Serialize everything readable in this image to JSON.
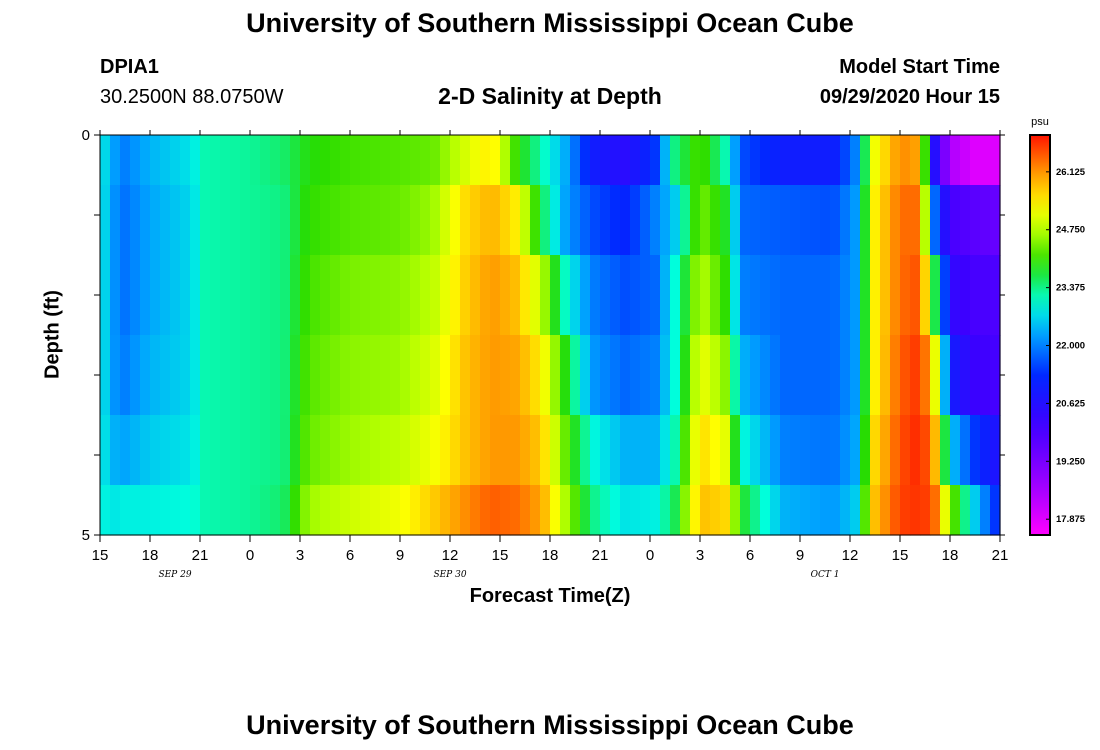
{
  "page": {
    "title": "University of Southern Mississippi Ocean Cube",
    "footer_title": "University of Southern Mississippi Ocean Cube",
    "station_id": "DPIA1",
    "station_coords": "30.2500N 88.0750W",
    "chart_title": "2-D Salinity at Depth",
    "start_label": "Model Start Time",
    "start_value": "09/29/2020 Hour 15"
  },
  "chart_data": {
    "type": "heatmap",
    "title": "2-D Salinity at Depth",
    "xlabel": "Forecast Time(Z)",
    "ylabel": "Depth (ft)",
    "x_hours": [
      0,
      54
    ],
    "x_ticks": [
      {
        "h": 0,
        "label": "15"
      },
      {
        "h": 3,
        "label": "18"
      },
      {
        "h": 6,
        "label": "21"
      },
      {
        "h": 9,
        "label": "0"
      },
      {
        "h": 12,
        "label": "3"
      },
      {
        "h": 15,
        "label": "6"
      },
      {
        "h": 18,
        "label": "9"
      },
      {
        "h": 21,
        "label": "12"
      },
      {
        "h": 24,
        "label": "15"
      },
      {
        "h": 27,
        "label": "18"
      },
      {
        "h": 30,
        "label": "21"
      },
      {
        "h": 33,
        "label": "0"
      },
      {
        "h": 36,
        "label": "3"
      },
      {
        "h": 39,
        "label": "6"
      },
      {
        "h": 42,
        "label": "9"
      },
      {
        "h": 45,
        "label": "12"
      },
      {
        "h": 48,
        "label": "15"
      },
      {
        "h": 51,
        "label": "18"
      },
      {
        "h": 54,
        "label": "21"
      }
    ],
    "date_labels": [
      {
        "h": 4.5,
        "label": "SEP 29"
      },
      {
        "h": 21,
        "label": "SEP 30"
      },
      {
        "h": 43.5,
        "label": "OCT 1"
      }
    ],
    "ylim": [
      0,
      5
    ],
    "y_tick_labels": [
      {
        "depth": 0,
        "label": "0"
      },
      {
        "depth": 5,
        "label": "5"
      }
    ],
    "colorbar": {
      "unit": "psu",
      "min": 17.5,
      "max": 27.0,
      "ticks": [
        "26.125",
        "24.750",
        "23.375",
        "22.000",
        "20.625",
        "19.250",
        "17.875"
      ]
    },
    "layers_depth_ft": [
      0.25,
      1.0,
      2.0,
      3.0,
      4.0,
      4.75
    ],
    "time_profiles": [
      {
        "h": 0,
        "s": [
          23.0,
          23.0,
          23.0,
          23.0,
          23.0,
          23.0
        ]
      },
      {
        "h": 0.7,
        "s": [
          22.3,
          22.2,
          22.2,
          22.2,
          22.4,
          22.8
        ]
      },
      {
        "h": 1.5,
        "s": [
          22.0,
          21.9,
          21.9,
          22.0,
          22.3,
          22.9
        ]
      },
      {
        "h": 3,
        "s": [
          22.4,
          22.3,
          22.3,
          22.4,
          22.6,
          22.9
        ]
      },
      {
        "h": 5.5,
        "s": [
          22.8,
          22.7,
          22.7,
          22.7,
          22.8,
          23.0
        ]
      },
      {
        "h": 6.3,
        "s": [
          23.2,
          23.2,
          23.2,
          23.2,
          23.2,
          23.2
        ]
      },
      {
        "h": 9,
        "s": [
          23.3,
          23.3,
          23.3,
          23.3,
          23.3,
          23.3
        ]
      },
      {
        "h": 11,
        "s": [
          23.5,
          23.4,
          23.4,
          23.4,
          23.4,
          23.5
        ]
      },
      {
        "h": 12.5,
        "s": [
          23.9,
          24.0,
          24.1,
          24.2,
          24.3,
          24.6
        ]
      },
      {
        "h": 15,
        "s": [
          24.1,
          24.2,
          24.4,
          24.5,
          24.6,
          24.9
        ]
      },
      {
        "h": 18,
        "s": [
          24.2,
          24.3,
          24.5,
          24.6,
          24.8,
          25.2
        ]
      },
      {
        "h": 20,
        "s": [
          24.3,
          24.6,
          24.8,
          25.0,
          25.2,
          25.7
        ]
      },
      {
        "h": 22,
        "s": [
          25.0,
          25.6,
          25.7,
          25.8,
          25.8,
          26.2
        ]
      },
      {
        "h": 23.5,
        "s": [
          25.5,
          25.9,
          26.1,
          26.1,
          26.1,
          26.5
        ]
      },
      {
        "h": 25,
        "s": [
          24.0,
          25.4,
          25.8,
          26.0,
          26.1,
          26.4
        ]
      },
      {
        "h": 26.5,
        "s": [
          23.2,
          23.6,
          24.8,
          25.4,
          25.7,
          26.0
        ]
      },
      {
        "h": 28,
        "s": [
          22.3,
          22.2,
          23.0,
          23.8,
          24.2,
          24.6
        ]
      },
      {
        "h": 29.5,
        "s": [
          21.0,
          21.6,
          22.0,
          22.2,
          23.0,
          23.4
        ]
      },
      {
        "h": 31.5,
        "s": [
          20.5,
          21.2,
          21.6,
          21.8,
          22.4,
          22.8
        ]
      },
      {
        "h": 33.3,
        "s": [
          21.4,
          22.0,
          21.8,
          22.0,
          22.4,
          22.9
        ]
      },
      {
        "h": 34.5,
        "s": [
          23.4,
          22.6,
          23.0,
          23.0,
          23.2,
          23.6
        ]
      },
      {
        "h": 36,
        "s": [
          24.2,
          24.4,
          24.8,
          25.2,
          25.6,
          25.8
        ]
      },
      {
        "h": 37.5,
        "s": [
          23.2,
          23.8,
          24.0,
          24.5,
          25.1,
          25.6
        ]
      },
      {
        "h": 38.5,
        "s": [
          21.6,
          21.8,
          22.0,
          22.4,
          23.0,
          23.8
        ]
      },
      {
        "h": 41,
        "s": [
          21.0,
          21.7,
          21.8,
          21.8,
          22.0,
          22.4
        ]
      },
      {
        "h": 44,
        "s": [
          21.0,
          21.6,
          21.8,
          21.8,
          21.9,
          22.2
        ]
      },
      {
        "h": 45.3,
        "s": [
          22.0,
          22.2,
          22.2,
          22.2,
          22.3,
          22.6
        ]
      },
      {
        "h": 46.5,
        "s": [
          25.2,
          25.4,
          25.4,
          25.4,
          25.6,
          25.8
        ]
      },
      {
        "h": 48,
        "s": [
          26.2,
          26.4,
          26.4,
          26.5,
          26.6,
          26.7
        ]
      },
      {
        "h": 49.2,
        "s": [
          26.0,
          26.4,
          26.6,
          26.8,
          26.9,
          26.8
        ]
      },
      {
        "h": 50,
        "s": [
          20.8,
          22.0,
          24.0,
          25.6,
          26.2,
          26.6
        ]
      },
      {
        "h": 51,
        "s": [
          18.5,
          20.0,
          20.4,
          21.0,
          22.6,
          24.5
        ]
      },
      {
        "h": 52.5,
        "s": [
          17.9,
          19.7,
          20.0,
          20.2,
          21.4,
          22.6
        ]
      },
      {
        "h": 54,
        "s": [
          17.9,
          19.5,
          19.9,
          20.0,
          20.6,
          21.1
        ]
      }
    ]
  }
}
